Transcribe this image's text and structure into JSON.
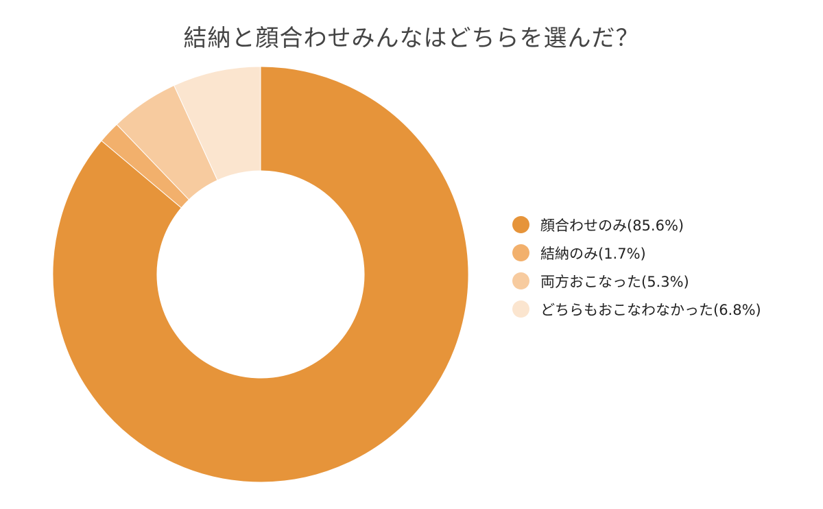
{
  "chart_data": {
    "type": "pie",
    "variant": "donut",
    "title": "結納と顔合わせみんなはどちらを選んだ？",
    "legend_position": "right",
    "slices": [
      {
        "label": "顔合わせのみ(85.6%)",
        "value": 85.6,
        "color": "#E6943A"
      },
      {
        "label": "結納のみ(1.7%)",
        "value": 1.7,
        "color": "#F2B06C"
      },
      {
        "label": "両方おこなった(5.3%)",
        "value": 5.3,
        "color": "#F7CB9F"
      },
      {
        "label": "どちらもおこなわなかった(6.8%)",
        "value": 6.8,
        "color": "#FBE5CF"
      }
    ]
  }
}
